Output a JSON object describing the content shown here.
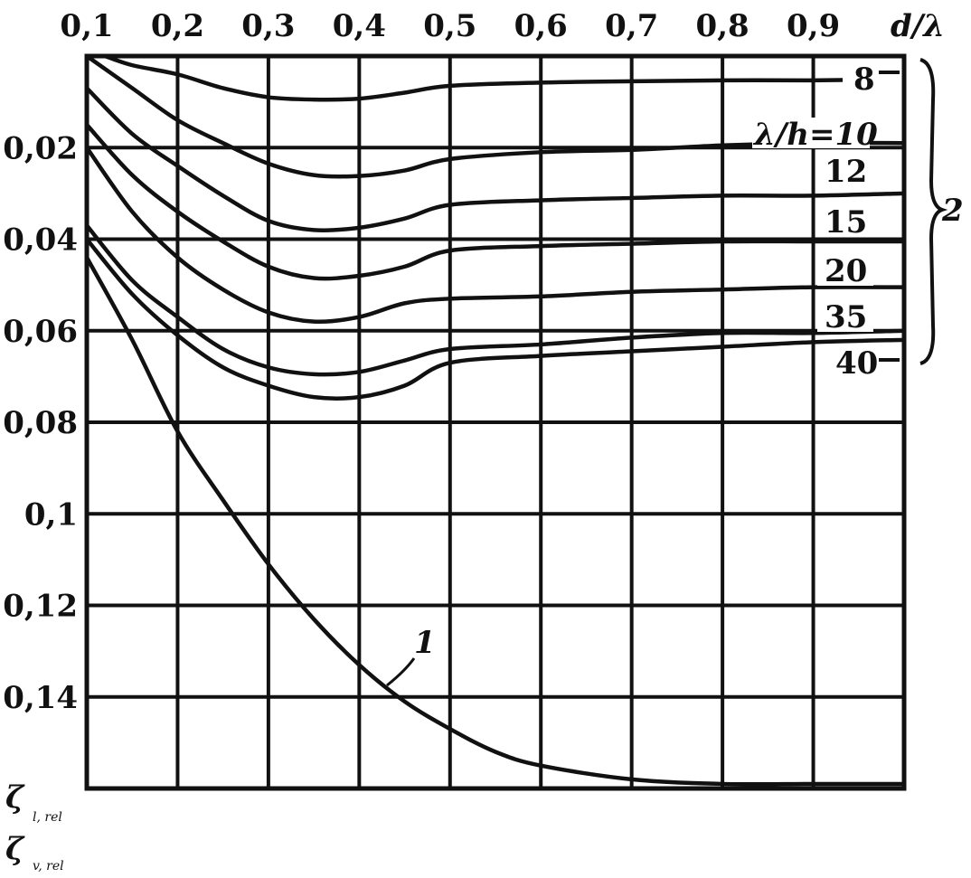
{
  "chart_data": {
    "type": "line",
    "x_axis": {
      "label": "d/λ",
      "position": "top",
      "ticks": [
        0.1,
        0.2,
        0.3,
        0.4,
        0.5,
        0.6,
        0.7,
        0.8,
        0.9,
        1.0
      ],
      "tick_labels": [
        "0,1",
        "0,2",
        "0,3",
        "0,4",
        "0,5",
        "0,6",
        "0,7",
        "0,8",
        "0,9"
      ],
      "range": [
        0.1,
        1.0
      ]
    },
    "y_axis": {
      "label_line1": "ζ",
      "label_line1_sub": "l, rel",
      "label_line2": "ζ",
      "label_line2_sub": "v, rel",
      "inverted": true,
      "ticks": [
        0,
        0.01,
        0.02,
        0.03,
        0.04,
        0.05,
        0.06,
        0.07,
        0.08,
        0.09,
        0.1,
        0.11,
        0.12,
        0.13,
        0.14,
        0.15,
        0.16
      ],
      "tick_labels": [
        {
          "value": 0.02,
          "text": "0,02"
        },
        {
          "value": 0.04,
          "text": "0,04"
        },
        {
          "value": 0.06,
          "text": "0,06"
        },
        {
          "value": 0.08,
          "text": "0,08"
        },
        {
          "value": 0.1,
          "text": "0,1"
        },
        {
          "value": 0.12,
          "text": "0,12"
        },
        {
          "value": 0.14,
          "text": "0,14"
        }
      ],
      "range": [
        0,
        0.16
      ]
    },
    "grid": true,
    "series": [
      {
        "name": "8",
        "points": [
          [
            0.12,
            0.0
          ],
          [
            0.15,
            0.002
          ],
          [
            0.2,
            0.004
          ],
          [
            0.25,
            0.007
          ],
          [
            0.3,
            0.009
          ],
          [
            0.35,
            0.0095
          ],
          [
            0.4,
            0.0093
          ],
          [
            0.45,
            0.008
          ],
          [
            0.5,
            0.0065
          ],
          [
            0.6,
            0.0058
          ],
          [
            0.7,
            0.0055
          ],
          [
            0.8,
            0.0053
          ],
          [
            0.9,
            0.0053
          ],
          [
            0.95,
            0.0052
          ]
        ]
      },
      {
        "name": "10",
        "points": [
          [
            0.1,
            0.0
          ],
          [
            0.15,
            0.007
          ],
          [
            0.2,
            0.014
          ],
          [
            0.25,
            0.019
          ],
          [
            0.3,
            0.0235
          ],
          [
            0.35,
            0.026
          ],
          [
            0.4,
            0.0262
          ],
          [
            0.45,
            0.025
          ],
          [
            0.5,
            0.0225
          ],
          [
            0.6,
            0.021
          ],
          [
            0.7,
            0.0205
          ],
          [
            0.8,
            0.0195
          ],
          [
            0.9,
            0.019
          ],
          [
            1.0,
            0.019
          ]
        ]
      },
      {
        "name": "12",
        "points": [
          [
            0.1,
            0.007
          ],
          [
            0.15,
            0.017
          ],
          [
            0.2,
            0.024
          ],
          [
            0.25,
            0.0305
          ],
          [
            0.3,
            0.036
          ],
          [
            0.35,
            0.038
          ],
          [
            0.4,
            0.0375
          ],
          [
            0.45,
            0.0355
          ],
          [
            0.5,
            0.0325
          ],
          [
            0.6,
            0.0315
          ],
          [
            0.7,
            0.031
          ],
          [
            0.8,
            0.0305
          ],
          [
            0.9,
            0.0305
          ],
          [
            1.0,
            0.03
          ]
        ]
      },
      {
        "name": "15",
        "points": [
          [
            0.1,
            0.015
          ],
          [
            0.15,
            0.026
          ],
          [
            0.2,
            0.034
          ],
          [
            0.25,
            0.0405
          ],
          [
            0.3,
            0.046
          ],
          [
            0.35,
            0.0485
          ],
          [
            0.4,
            0.048
          ],
          [
            0.45,
            0.046
          ],
          [
            0.5,
            0.0425
          ],
          [
            0.6,
            0.0415
          ],
          [
            0.7,
            0.041
          ],
          [
            0.8,
            0.0405
          ],
          [
            0.9,
            0.0405
          ],
          [
            1.0,
            0.0405
          ]
        ]
      },
      {
        "name": "20",
        "points": [
          [
            0.1,
            0.02
          ],
          [
            0.15,
            0.034
          ],
          [
            0.2,
            0.044
          ],
          [
            0.25,
            0.051
          ],
          [
            0.3,
            0.056
          ],
          [
            0.35,
            0.058
          ],
          [
            0.4,
            0.057
          ],
          [
            0.45,
            0.054
          ],
          [
            0.5,
            0.053
          ],
          [
            0.6,
            0.0525
          ],
          [
            0.7,
            0.0515
          ],
          [
            0.8,
            0.051
          ],
          [
            0.9,
            0.0505
          ],
          [
            1.0,
            0.0505
          ]
        ]
      },
      {
        "name": "35",
        "points": [
          [
            0.1,
            0.037
          ],
          [
            0.15,
            0.049
          ],
          [
            0.2,
            0.057
          ],
          [
            0.25,
            0.064
          ],
          [
            0.3,
            0.068
          ],
          [
            0.35,
            0.0695
          ],
          [
            0.4,
            0.069
          ],
          [
            0.45,
            0.0665
          ],
          [
            0.5,
            0.064
          ],
          [
            0.6,
            0.063
          ],
          [
            0.7,
            0.0615
          ],
          [
            0.8,
            0.0605
          ],
          [
            0.9,
            0.0605
          ],
          [
            1.0,
            0.06
          ]
        ]
      },
      {
        "name": "40",
        "points": [
          [
            0.1,
            0.04
          ],
          [
            0.15,
            0.052
          ],
          [
            0.2,
            0.061
          ],
          [
            0.25,
            0.068
          ],
          [
            0.3,
            0.072
          ],
          [
            0.35,
            0.0745
          ],
          [
            0.4,
            0.0745
          ],
          [
            0.45,
            0.072
          ],
          [
            0.5,
            0.067
          ],
          [
            0.6,
            0.0655
          ],
          [
            0.7,
            0.0645
          ],
          [
            0.8,
            0.0635
          ],
          [
            0.9,
            0.0625
          ],
          [
            1.0,
            0.062
          ]
        ]
      },
      {
        "name": "1",
        "points": [
          [
            0.1,
            0.044
          ],
          [
            0.15,
            0.062
          ],
          [
            0.2,
            0.082
          ],
          [
            0.25,
            0.097
          ],
          [
            0.3,
            0.111
          ],
          [
            0.35,
            0.123
          ],
          [
            0.4,
            0.133
          ],
          [
            0.45,
            0.141
          ],
          [
            0.5,
            0.147
          ],
          [
            0.55,
            0.152
          ],
          [
            0.6,
            0.155
          ],
          [
            0.7,
            0.158
          ],
          [
            0.8,
            0.159
          ],
          [
            0.9,
            0.159
          ],
          [
            1.0,
            0.159
          ]
        ]
      }
    ],
    "annotations": {
      "curve_label_1": "1",
      "group_label": "2",
      "lambda_h_prefix": "λ/h=10",
      "labels": [
        "8",
        "12",
        "15",
        "20",
        "35",
        "40"
      ]
    }
  }
}
